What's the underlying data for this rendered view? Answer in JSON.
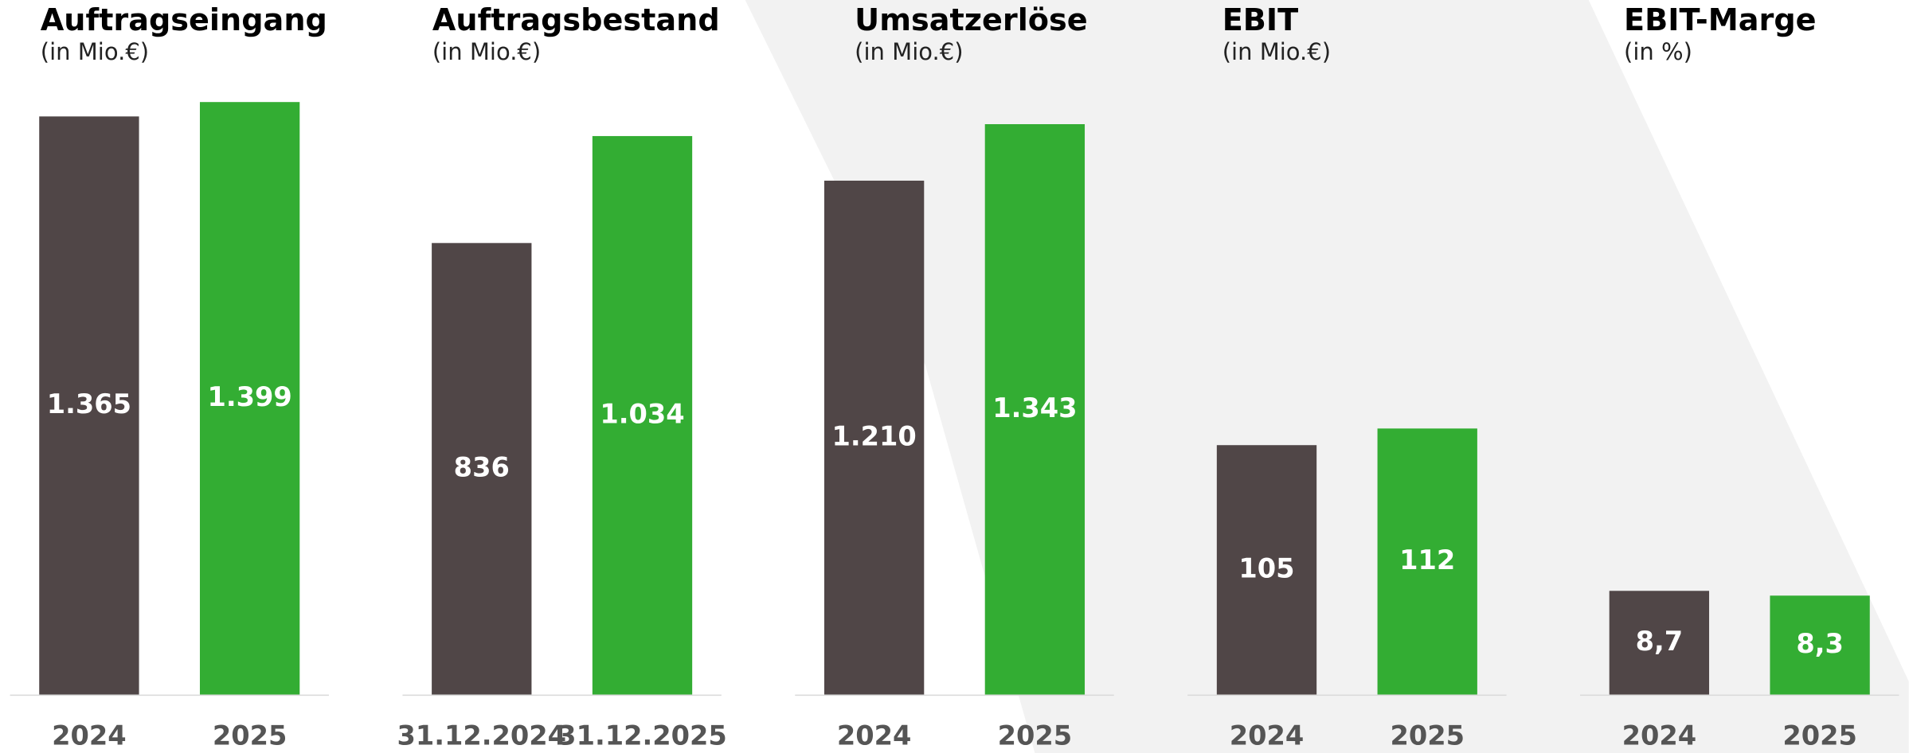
{
  "chart_data": [
    {
      "type": "bar",
      "title": "Auftragseingang",
      "subtitle": "(in Mio.€)",
      "categories": [
        "2024",
        "2025"
      ],
      "values": [
        1365,
        1399
      ],
      "value_labels": [
        "1.365",
        "1.399"
      ],
      "colors": [
        "#504647",
        "#33ad33"
      ],
      "ylim": [
        0,
        1436
      ]
    },
    {
      "type": "bar",
      "title": "Auftragsbestand",
      "subtitle": "(in Mio.€)",
      "categories": [
        "31.12.2024",
        "31.12.2025"
      ],
      "values": [
        836,
        1034
      ],
      "value_labels": [
        "836",
        "1.034"
      ],
      "colors": [
        "#504647",
        "#33ad33"
      ],
      "ylim": [
        0,
        1126
      ]
    },
    {
      "type": "bar",
      "title": "Umsatzerlöse",
      "subtitle": "(in Mio.€)",
      "categories": [
        "2024",
        "2025"
      ],
      "values": [
        1210,
        1343
      ],
      "value_labels": [
        "1.210",
        "1.343"
      ],
      "colors": [
        "#504647",
        "#33ad33"
      ],
      "ylim": [
        0,
        1432
      ]
    },
    {
      "type": "bar",
      "title": "EBIT",
      "subtitle": "(in Mio.€)",
      "categories": [
        "2024",
        "2025"
      ],
      "values": [
        105,
        112
      ],
      "value_labels": [
        "105",
        "112"
      ],
      "colors": [
        "#504647",
        "#33ad33"
      ],
      "ylim": [
        0,
        256
      ]
    },
    {
      "type": "bar",
      "title": "EBIT-Marge",
      "subtitle": "(in %)",
      "categories": [
        "2024",
        "2025"
      ],
      "values": [
        8.7,
        8.3
      ],
      "value_labels": [
        "8,7",
        "8,3"
      ],
      "colors": [
        "#504647",
        "#33ad33"
      ],
      "ylim": [
        0,
        51
      ]
    }
  ]
}
